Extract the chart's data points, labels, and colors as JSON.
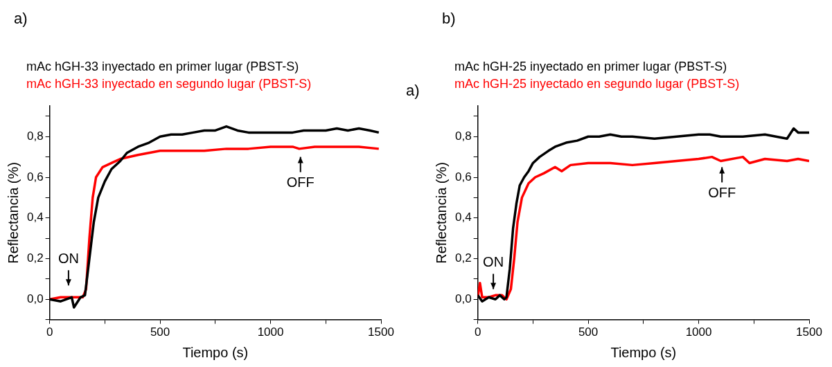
{
  "chart_data": [
    {
      "type": "line",
      "title": "a)",
      "xlabel": "Tiempo (s)",
      "ylabel": "Reflectancia (%)",
      "legend": "top",
      "grid": false,
      "xlim": [
        0,
        1500
      ],
      "xticks": [
        0,
        {
          "value": 250,
          "label": null
        },
        500,
        {
          "value": 750,
          "label": null
        },
        1000,
        {
          "value": 1250,
          "label": null
        },
        1500
      ],
      "ylim": [
        -0.1,
        0.95
      ],
      "yticks": [
        {
          "value": -0.1,
          "label": null
        },
        {
          "value": 0,
          "label": "0,0"
        },
        {
          "value": 0.1,
          "label": null
        },
        {
          "value": 0.2,
          "label": "0,2"
        },
        {
          "value": 0.3,
          "label": null
        },
        {
          "value": 0.4,
          "label": "0,4"
        },
        {
          "value": 0.5,
          "label": null
        },
        {
          "value": 0.6,
          "label": "0,6"
        },
        {
          "value": 0.7,
          "label": null
        },
        {
          "value": 0.8,
          "label": "0,8"
        },
        {
          "value": 0.9,
          "label": null
        }
      ],
      "annotations": [
        "a)",
        "ON",
        "OFF"
      ],
      "series": [
        {
          "name": "mAc hGH-33 inyectado en primer lugar (PBST-S)",
          "color": "#000000",
          "x": [
            0,
            50,
            100,
            110,
            140,
            160,
            180,
            200,
            220,
            250,
            280,
            320,
            350,
            400,
            450,
            500,
            550,
            600,
            650,
            700,
            750,
            800,
            850,
            900,
            950,
            1000,
            1050,
            1100,
            1150,
            1200,
            1250,
            1300,
            1350,
            1400,
            1450,
            1490
          ],
          "values": [
            0,
            -0.01,
            0.01,
            -0.04,
            0.01,
            0.02,
            0.2,
            0.38,
            0.5,
            0.58,
            0.64,
            0.68,
            0.72,
            0.75,
            0.77,
            0.8,
            0.81,
            0.81,
            0.82,
            0.83,
            0.83,
            0.85,
            0.83,
            0.82,
            0.82,
            0.82,
            0.82,
            0.82,
            0.83,
            0.83,
            0.83,
            0.84,
            0.83,
            0.84,
            0.83,
            0.82
          ]
        },
        {
          "name": "mAc hGH-33 inyectado en segundo lugar (PBST-S)",
          "color": "#ff0000",
          "x": [
            0,
            50,
            100,
            150,
            165,
            180,
            195,
            210,
            240,
            280,
            320,
            400,
            450,
            500,
            600,
            700,
            800,
            900,
            1000,
            1100,
            1130,
            1200,
            1300,
            1400,
            1490
          ],
          "values": [
            0,
            0.01,
            0.01,
            0.01,
            0.05,
            0.3,
            0.5,
            0.6,
            0.65,
            0.67,
            0.69,
            0.71,
            0.72,
            0.73,
            0.73,
            0.73,
            0.74,
            0.74,
            0.75,
            0.75,
            0.74,
            0.75,
            0.75,
            0.75,
            0.74
          ]
        }
      ]
    },
    {
      "type": "line",
      "title": "b)",
      "xlabel": "Tiempo (s)",
      "ylabel": "Reflectancia (%)",
      "legend": "top",
      "grid": false,
      "xlim": [
        0,
        1500
      ],
      "xticks": [
        0,
        {
          "value": 250,
          "label": null
        },
        500,
        {
          "value": 750,
          "label": null
        },
        1000,
        {
          "value": 1250,
          "label": null
        },
        1500
      ],
      "ylim": [
        -0.1,
        0.95
      ],
      "yticks": [
        {
          "value": -0.1,
          "label": null
        },
        {
          "value": 0,
          "label": "0,0"
        },
        {
          "value": 0.1,
          "label": null
        },
        {
          "value": 0.2,
          "label": "0,2"
        },
        {
          "value": 0.3,
          "label": null
        },
        {
          "value": 0.4,
          "label": "0,4"
        },
        {
          "value": 0.5,
          "label": null
        },
        {
          "value": 0.6,
          "label": "0,6"
        },
        {
          "value": 0.7,
          "label": null
        },
        {
          "value": 0.8,
          "label": "0,8"
        },
        {
          "value": 0.9,
          "label": null
        }
      ],
      "annotations": [
        "ON",
        "OFF"
      ],
      "series": [
        {
          "name": "mAc hGH-25 inyectado en primer lugar (PBST-S)",
          "color": "#000000",
          "x": [
            0,
            20,
            50,
            80,
            100,
            120,
            130,
            145,
            160,
            175,
            190,
            210,
            230,
            250,
            280,
            320,
            350,
            400,
            450,
            500,
            550,
            600,
            650,
            700,
            800,
            900,
            1000,
            1050,
            1100,
            1200,
            1300,
            1400,
            1430,
            1450,
            1500
          ],
          "values": [
            0.02,
            -0.01,
            0.01,
            0,
            0.02,
            0,
            0.01,
            0.15,
            0.35,
            0.47,
            0.56,
            0.6,
            0.63,
            0.67,
            0.7,
            0.73,
            0.75,
            0.77,
            0.78,
            0.8,
            0.8,
            0.81,
            0.8,
            0.8,
            0.79,
            0.8,
            0.81,
            0.81,
            0.8,
            0.8,
            0.81,
            0.79,
            0.84,
            0.82,
            0.82
          ]
        },
        {
          "name": "mAc hGH-25 inyectado en segundo lugar (PBST-S)",
          "color": "#ff0000",
          "x": [
            0,
            10,
            20,
            50,
            80,
            110,
            130,
            150,
            165,
            180,
            200,
            230,
            260,
            300,
            350,
            380,
            420,
            500,
            600,
            700,
            800,
            900,
            1000,
            1060,
            1100,
            1200,
            1230,
            1300,
            1400,
            1450,
            1500
          ],
          "values": [
            0.01,
            0.08,
            0.01,
            0.01,
            0.02,
            0.02,
            0,
            0.05,
            0.2,
            0.38,
            0.5,
            0.57,
            0.6,
            0.62,
            0.65,
            0.63,
            0.66,
            0.67,
            0.67,
            0.66,
            0.67,
            0.68,
            0.69,
            0.7,
            0.68,
            0.7,
            0.67,
            0.69,
            0.68,
            0.69,
            0.68
          ]
        }
      ]
    }
  ]
}
